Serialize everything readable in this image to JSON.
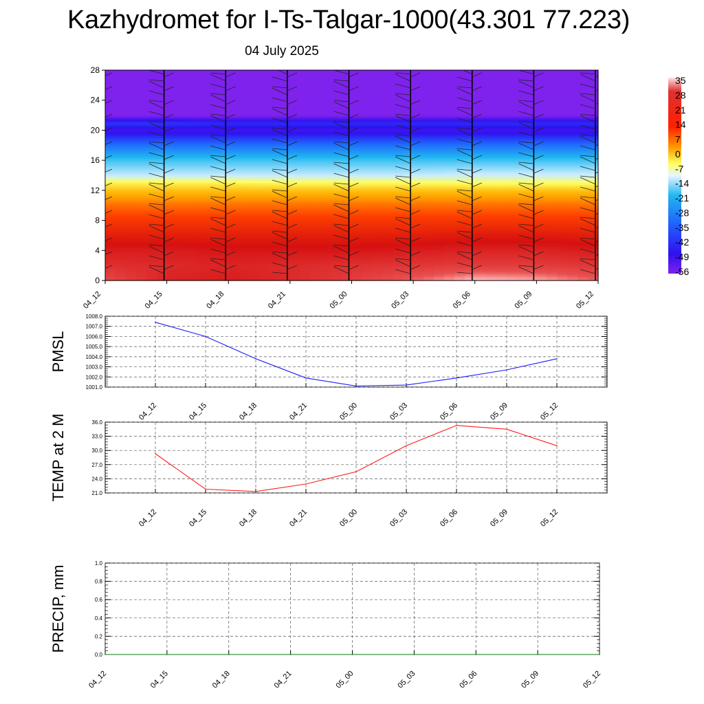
{
  "header": {
    "title": "Kazhydromet for I-Ts-Talgar-1000(43.301 77.223)",
    "date": "04 July 2025"
  },
  "colors": {
    "pmsl_line": "#1a1aff",
    "temp_line": "#ff1a1a",
    "precip_line": "#0b7a0b",
    "grid": "#555555"
  },
  "chart_data": [
    {
      "type": "heatmap",
      "title": "",
      "xlabel": "",
      "ylabel": "",
      "x": [
        "04_12",
        "04_15",
        "04_18",
        "04_21",
        "05_00",
        "05_03",
        "05_06",
        "05_09",
        "05_12"
      ],
      "yticks": [
        0,
        4,
        8,
        12,
        16,
        20,
        24,
        28
      ],
      "ylim": [
        0,
        28
      ],
      "colorbar": {
        "labels": [
          "35",
          "28",
          "21",
          "14",
          "7",
          "0",
          "-7",
          "-14",
          "-21",
          "-28",
          "-35",
          "-42",
          "-49",
          "-56"
        ],
        "range": [
          -56,
          35
        ]
      },
      "overlay": "wind barbs",
      "levels": [
        {
          "height": 0,
          "temp": [
            29,
            23,
            22,
            24,
            27,
            31,
            35,
            34,
            31
          ]
        },
        {
          "height": 2,
          "temp": [
            25,
            24,
            23,
            24,
            25,
            26,
            27,
            27,
            26
          ]
        },
        {
          "height": 4,
          "temp": [
            22,
            22,
            21,
            21,
            21,
            22,
            23,
            23,
            22
          ]
        },
        {
          "height": 6,
          "temp": [
            17,
            17,
            17,
            17,
            17,
            17,
            18,
            18,
            17
          ]
        },
        {
          "height": 8,
          "temp": [
            12,
            12,
            12,
            12,
            12,
            12,
            12,
            12,
            12
          ]
        },
        {
          "height": 10,
          "temp": [
            6,
            6,
            6,
            6,
            6,
            6,
            6,
            6,
            6
          ]
        },
        {
          "height": 12,
          "temp": [
            -2,
            -2,
            -2,
            -2,
            -2,
            -2,
            -2,
            -2,
            -2
          ]
        },
        {
          "height": 13,
          "temp": [
            -8,
            -8,
            -8,
            -9,
            -9,
            -9,
            -10,
            -10,
            -10
          ]
        },
        {
          "height": 14,
          "temp": [
            -20,
            -20,
            -20,
            -20,
            -20,
            -20,
            -19,
            -19,
            -19
          ]
        },
        {
          "height": 16,
          "temp": [
            -28,
            -28,
            -28,
            -28,
            -28,
            -28,
            -28,
            -28,
            -28
          ]
        },
        {
          "height": 18,
          "temp": [
            -38,
            -38,
            -38,
            -38,
            -38,
            -38,
            -38,
            -38,
            -38
          ]
        },
        {
          "height": 20,
          "temp": [
            -50,
            -50,
            -50,
            -50,
            -50,
            -50,
            -50,
            -50,
            -50
          ]
        },
        {
          "height": 21,
          "temp": [
            -44,
            -44,
            -45,
            -45,
            -45,
            -45,
            -45,
            -45,
            -45
          ]
        },
        {
          "height": 22,
          "temp": [
            -56,
            -56,
            -56,
            -56,
            -56,
            -56,
            -56,
            -56,
            -56
          ]
        },
        {
          "height": 28,
          "temp": [
            -56,
            -56,
            -56,
            -56,
            -56,
            -56,
            -56,
            -56,
            -56
          ]
        }
      ]
    },
    {
      "type": "line",
      "ylabel": "PMSL",
      "ylim": [
        1001.0,
        1008.0
      ],
      "yticks": [
        "1001.0",
        "1002.0",
        "1003.0",
        "1004.0",
        "1005.0",
        "1006.0",
        "1007.0",
        "1008.0"
      ],
      "categories": [
        "04_12",
        "04_15",
        "04_18",
        "04_21",
        "05_00",
        "05_03",
        "05_06",
        "05_09",
        "05_12"
      ],
      "values": [
        1007.4,
        1006.0,
        1003.8,
        1001.9,
        1001.1,
        1001.2,
        1001.9,
        1002.7,
        1003.8
      ]
    },
    {
      "type": "line",
      "ylabel": "TEMP at 2 M",
      "ylim": [
        21.0,
        36.0
      ],
      "yticks": [
        "21.0",
        "24.0",
        "27.0",
        "30.0",
        "33.0",
        "36.0"
      ],
      "categories": [
        "04_12",
        "04_15",
        "04_18",
        "04_21",
        "05_00",
        "05_03",
        "05_06",
        "05_09",
        "05_12"
      ],
      "values": [
        29.3,
        21.8,
        21.3,
        22.9,
        25.5,
        31.0,
        35.3,
        34.5,
        31.0
      ]
    },
    {
      "type": "line",
      "ylabel": "PRECIP, mm",
      "ylim": [
        0.0,
        1.0
      ],
      "yticks": [
        "0.0",
        "0.2",
        "0.4",
        "0.6",
        "0.8",
        "1.0"
      ],
      "categories": [
        "04_12",
        "04_15",
        "04_18",
        "04_21",
        "05_00",
        "05_03",
        "05_06",
        "05_09",
        "05_12"
      ],
      "values": [
        0,
        0,
        0,
        0,
        0,
        0,
        0,
        0,
        0
      ]
    }
  ]
}
